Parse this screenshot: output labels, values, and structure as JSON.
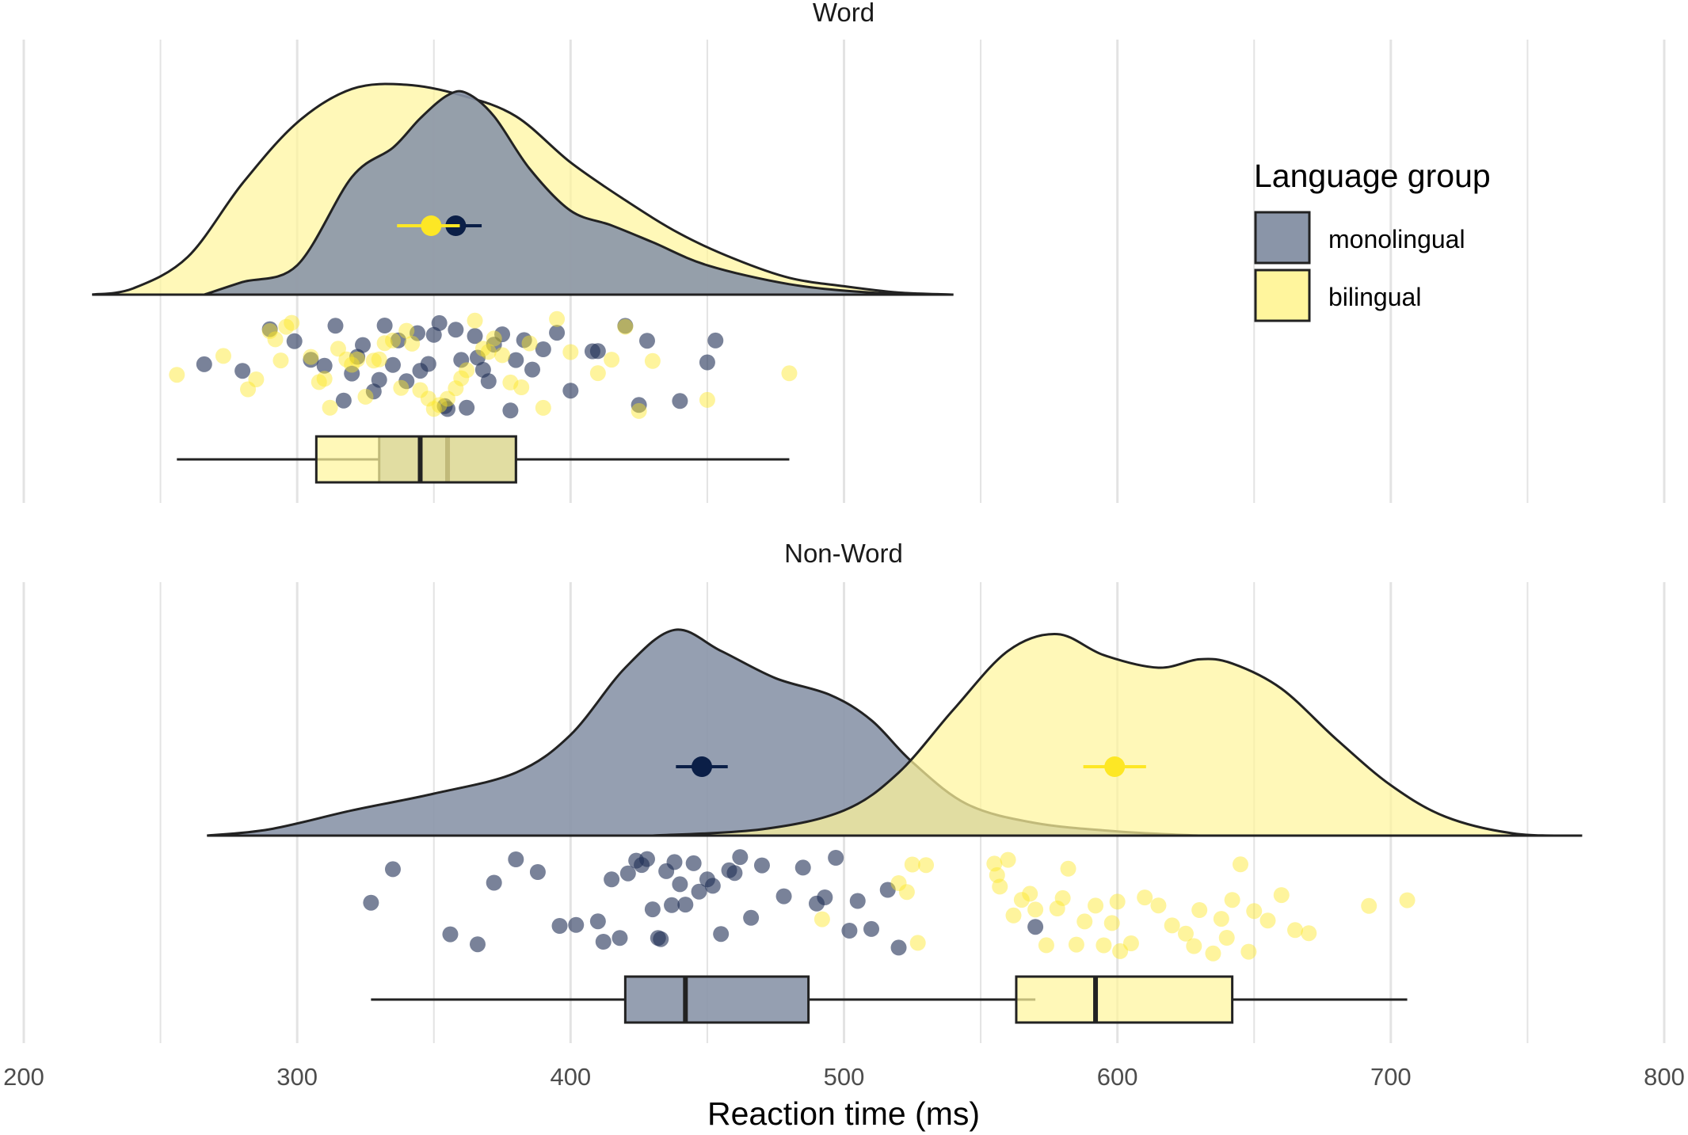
{
  "chart_data": {
    "type": "raincloud",
    "xlabel": "Reaction time (ms)",
    "xlim": [
      200,
      800
    ],
    "x_ticks": [
      200,
      300,
      400,
      500,
      600,
      700,
      800
    ],
    "grid": true,
    "legend": {
      "title": "Language group",
      "placement": "right",
      "entries": [
        {
          "name": "monolingual",
          "color": "#2d4066"
        },
        {
          "name": "bilingual",
          "color": "#fde725"
        }
      ]
    },
    "colors": {
      "monolingual_fill": "#8a95a8",
      "bilingual_fill": "#fff59d",
      "monolingual_point": "#1f2f55",
      "bilingual_point": "#fde725",
      "monolingual_mean": "#0b1f47",
      "bilingual_mean": "#fde725",
      "outline": "#222222",
      "grid": "#e3e3e3"
    },
    "panels": [
      {
        "title": "Word",
        "groups": [
          {
            "name": "monolingual",
            "mean": 358,
            "mean_ci": [
              352,
              364
            ],
            "density": {
              "x": [
                266,
                280,
                300,
                320,
                335,
                345,
                355,
                362,
                372,
                385,
                400,
                415,
                430,
                450,
                480,
                510,
                540
              ],
              "y": [
                0.0,
                0.06,
                0.14,
                0.56,
                0.7,
                0.84,
                0.95,
                0.96,
                0.85,
                0.6,
                0.4,
                0.33,
                0.25,
                0.14,
                0.05,
                0.01,
                0.0
              ]
            },
            "box": {
              "min": 266,
              "q1": 330,
              "median": 355,
              "q3": 380,
              "max": 453
            },
            "points": [
              266,
              280,
              290,
              299,
              305,
              310,
              314,
              317,
              320,
              322,
              324,
              328,
              330,
              332,
              335,
              337,
              340,
              344,
              345,
              348,
              350,
              352,
              354,
              355,
              358,
              360,
              362,
              365,
              366,
              368,
              370,
              372,
              375,
              378,
              380,
              383,
              386,
              390,
              395,
              400,
              408,
              410,
              420,
              425,
              428,
              440,
              450,
              453
            ]
          },
          {
            "name": "bilingual",
            "mean": 349,
            "mean_ci": [
              340,
              356
            ],
            "density": {
              "x": [
                225,
                240,
                260,
                280,
                300,
                320,
                340,
                360,
                380,
                400,
                420,
                440,
                460,
                480,
                500,
                520,
                540
              ],
              "y": [
                0.0,
                0.03,
                0.18,
                0.53,
                0.82,
                0.98,
                1.0,
                0.95,
                0.85,
                0.63,
                0.45,
                0.29,
                0.17,
                0.08,
                0.04,
                0.01,
                0.0
              ]
            },
            "box": {
              "min": 256,
              "q1": 307,
              "median": 345,
              "q3": 380,
              "max": 480
            },
            "points": [
              256,
              273,
              282,
              285,
              290,
              292,
              294,
              296,
              298,
              305,
              308,
              310,
              312,
              315,
              318,
              320,
              322,
              325,
              328,
              330,
              332,
              335,
              338,
              340,
              342,
              345,
              348,
              350,
              352,
              355,
              358,
              360,
              362,
              365,
              368,
              370,
              372,
              375,
              378,
              382,
              385,
              390,
              395,
              400,
              410,
              415,
              420,
              425,
              430,
              450,
              480
            ]
          }
        ]
      },
      {
        "title": "Non-Word",
        "groups": [
          {
            "name": "monolingual",
            "mean": 448,
            "mean_ci": [
              442,
              454
            ],
            "density": {
              "x": [
                267,
                290,
                320,
                350,
                380,
                400,
                420,
                438,
                455,
                475,
                495,
                510,
                525,
                545,
                570,
                600,
                630
              ],
              "y": [
                0.0,
                0.03,
                0.12,
                0.2,
                0.3,
                0.48,
                0.8,
                0.98,
                0.88,
                0.75,
                0.67,
                0.55,
                0.35,
                0.15,
                0.06,
                0.02,
                0.0
              ]
            },
            "box": {
              "min": 327,
              "q1": 420,
              "median": 442,
              "q3": 487,
              "max": 570
            },
            "points": [
              327,
              335,
              356,
              366,
              372,
              380,
              388,
              396,
              402,
              410,
              412,
              415,
              418,
              421,
              424,
              426,
              428,
              430,
              432,
              433,
              435,
              437,
              438,
              440,
              442,
              445,
              447,
              450,
              452,
              455,
              458,
              460,
              462,
              466,
              470,
              478,
              485,
              490,
              493,
              497,
              502,
              505,
              510,
              516,
              520,
              570
            ]
          },
          {
            "name": "bilingual",
            "mean": 599,
            "mean_ci": [
              591,
              607
            ],
            "density": {
              "x": [
                430,
                470,
                500,
                520,
                540,
                560,
                578,
                595,
                615,
                630,
                642,
                660,
                680,
                700,
                720,
                745,
                770
              ],
              "y": [
                0.0,
                0.03,
                0.12,
                0.3,
                0.6,
                0.88,
                0.96,
                0.86,
                0.8,
                0.84,
                0.82,
                0.7,
                0.46,
                0.24,
                0.09,
                0.01,
                0.0
              ]
            },
            "box": {
              "min": 492,
              "q1": 563,
              "median": 592,
              "q3": 642,
              "max": 706
            },
            "points": [
              492,
              520,
              523,
              525,
              527,
              530,
              555,
              556,
              557,
              560,
              562,
              565,
              568,
              570,
              574,
              578,
              580,
              582,
              585,
              588,
              592,
              595,
              598,
              600,
              601,
              605,
              610,
              615,
              620,
              625,
              628,
              630,
              635,
              638,
              640,
              642,
              645,
              648,
              650,
              655,
              660,
              665,
              670,
              692,
              706
            ]
          }
        ]
      }
    ]
  }
}
